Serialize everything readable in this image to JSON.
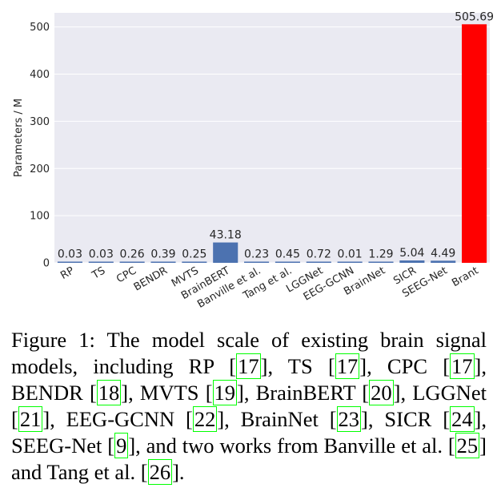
{
  "chart_data": {
    "type": "bar",
    "categories": [
      "RP",
      "TS",
      "CPC",
      "BENDR",
      "MVTS",
      "BrainBERT",
      "Banville et al.",
      "Tang et al.",
      "LGGNet",
      "EEG-GCNN",
      "BrainNet",
      "SICR",
      "SEEG-Net",
      "Brant"
    ],
    "values": [
      0.03,
      0.03,
      0.26,
      0.39,
      0.25,
      43.18,
      0.23,
      0.45,
      0.72,
      0.01,
      1.29,
      5.04,
      4.49,
      505.69
    ],
    "value_labels": [
      "0.03",
      "0.03",
      "0.26",
      "0.39",
      "0.25",
      "43.18",
      "0.23",
      "0.45",
      "0.72",
      "0.01",
      "1.29",
      "5.04",
      "4.49",
      "505.69"
    ],
    "colors": [
      "#4c72b0",
      "#4c72b0",
      "#4c72b0",
      "#4c72b0",
      "#4c72b0",
      "#4c72b0",
      "#4c72b0",
      "#4c72b0",
      "#4c72b0",
      "#4c72b0",
      "#4c72b0",
      "#4c72b0",
      "#4c72b0",
      "#ff0000"
    ],
    "title": "",
    "xlabel": "",
    "ylabel": "Parameters / M",
    "ylim": [
      0,
      530
    ],
    "yticks": [
      0,
      100,
      200,
      300,
      400,
      500
    ],
    "grid": true,
    "background": "#eaeaf2"
  },
  "caption": {
    "prefix": "Figure 1:  The model scale of existing brain signal models, including RP [",
    "parts": [
      {
        "ref": "17",
        "after": "], TS ["
      },
      {
        "ref": "17",
        "after": "], CPC ["
      },
      {
        "ref": "17",
        "after": "], BENDR ["
      },
      {
        "ref": "18",
        "after": "], MVTS ["
      },
      {
        "ref": "19",
        "after": "], BrainBERT ["
      },
      {
        "ref": "20",
        "after": "], LGGNet ["
      },
      {
        "ref": "21",
        "after": "], EEG-GCNN ["
      },
      {
        "ref": "22",
        "after": "], BrainNet ["
      },
      {
        "ref": "23",
        "after": "], SICR ["
      },
      {
        "ref": "24",
        "after": "], SEEG-Net ["
      },
      {
        "ref": "9",
        "after": "], and two works from Banville et al. ["
      },
      {
        "ref": "25",
        "after": "] and  Tang et al. ["
      },
      {
        "ref": "26",
        "after": "]."
      }
    ]
  }
}
